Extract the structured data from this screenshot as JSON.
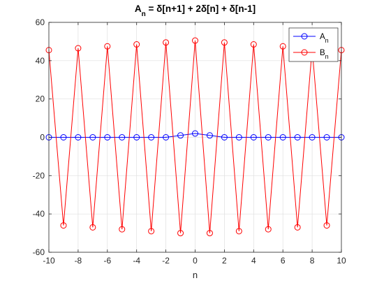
{
  "chart_data": {
    "type": "line",
    "title_parts": [
      "A",
      "n",
      " = δ[n+1] + 2δ[n] + δ[n-1]"
    ],
    "xlabel": "n",
    "ylabel": "",
    "xlim": [
      -10,
      10
    ],
    "ylim": [
      -60,
      60
    ],
    "x_ticks": [
      -10,
      -8,
      -6,
      -4,
      -2,
      0,
      2,
      4,
      6,
      8,
      10
    ],
    "y_ticks": [
      -60,
      -40,
      -20,
      0,
      20,
      40,
      60
    ],
    "grid": true,
    "legend_position": "top-right",
    "x": [
      -10,
      -9,
      -8,
      -7,
      -6,
      -5,
      -4,
      -3,
      -2,
      -1,
      0,
      1,
      2,
      3,
      4,
      5,
      6,
      7,
      8,
      9,
      10
    ],
    "series": [
      {
        "name": "A",
        "subscript": "n",
        "color": "#0000ff",
        "marker": "circle",
        "values": [
          0,
          0,
          0,
          0,
          0,
          0,
          0,
          0,
          0,
          1,
          2,
          1,
          0,
          0,
          0,
          0,
          0,
          0,
          0,
          0,
          0
        ]
      },
      {
        "name": "B",
        "subscript": "n",
        "color": "#ff0000",
        "marker": "circle",
        "values": [
          45.5,
          -46,
          46.5,
          -47,
          47.5,
          -48,
          48.5,
          -49,
          49.5,
          -50,
          50.5,
          -50,
          49.5,
          -49,
          48.5,
          -48,
          47.5,
          -47,
          46.5,
          -46,
          45.5
        ]
      }
    ]
  }
}
